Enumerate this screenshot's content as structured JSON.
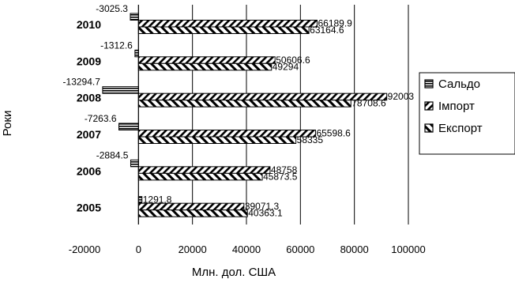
{
  "chart_data": {
    "type": "bar",
    "orientation": "horizontal",
    "categories": [
      "2005",
      "2006",
      "2007",
      "2008",
      "2009",
      "2010"
    ],
    "series": [
      {
        "name": "Сальдо",
        "values": [
          1291.8,
          -2884.5,
          -7263.6,
          -13294.7,
          -1312.6,
          -3025.3
        ],
        "pattern": "horizontal-lines",
        "labels": [
          "1291.8",
          "-2884.5",
          "-7263.6",
          "-13294.7",
          "-1312.6",
          "-3025.3"
        ]
      },
      {
        "name": "Імпорт",
        "values": [
          39071.3,
          48758,
          65598.6,
          92003,
          50606.6,
          66189.9
        ],
        "pattern": "diagonal-dense",
        "labels": [
          "39071.3",
          "48758",
          "65598.6",
          "92003",
          "50606.6",
          "66189.9"
        ]
      },
      {
        "name": "Експорт",
        "values": [
          40363.1,
          45873.5,
          58335,
          78708.6,
          49294,
          63164.6
        ],
        "pattern": "diagonal-wide",
        "labels": [
          "40363.1",
          "45873.5",
          "58335",
          "78708.6",
          "49294",
          "63164.6"
        ]
      }
    ],
    "xlabel": "Млн. дол. США",
    "ylabel": "Роки",
    "xlim": [
      -20000,
      100000
    ],
    "xticks": [
      "-20000",
      "0",
      "20000",
      "40000",
      "60000",
      "80000",
      "100000"
    ],
    "grid": "vertical",
    "legend": "right"
  }
}
